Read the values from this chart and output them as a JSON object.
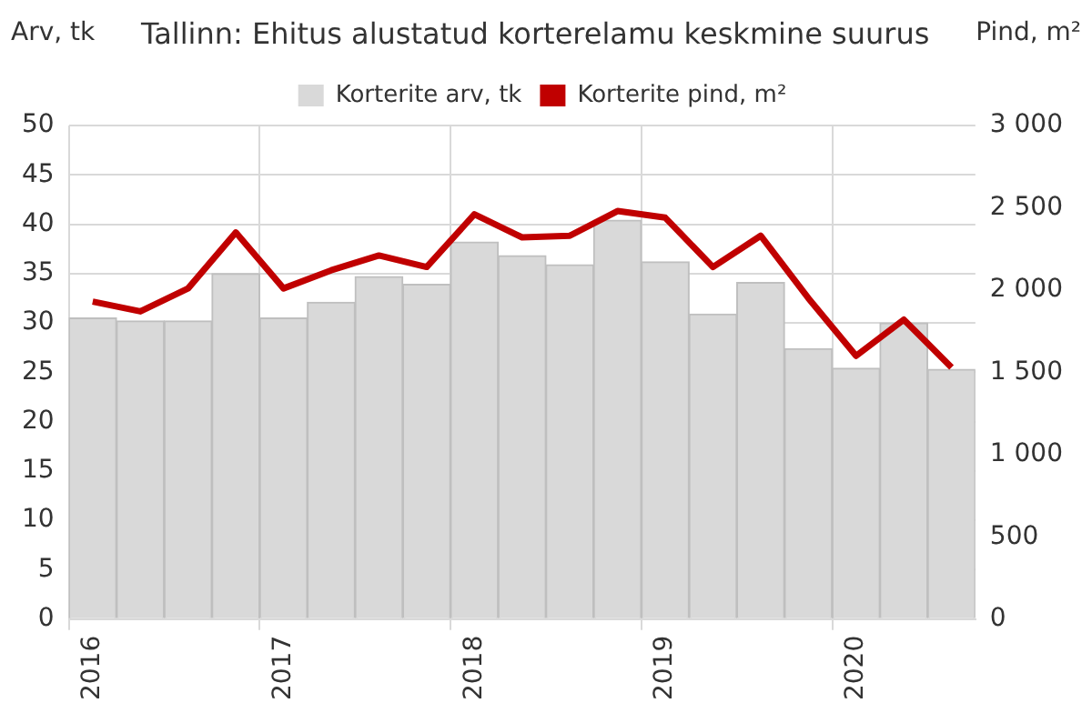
{
  "chart_data": {
    "type": "bar",
    "title": "Tallinn: Ehitus alustatud korterelamu keskmine suurus",
    "ylabel": "Arv, tk",
    "y2label": "Pind, m²",
    "categories": [
      "2016",
      null,
      null,
      null,
      "2017",
      null,
      null,
      null,
      "2018",
      null,
      null,
      null,
      "2019",
      null,
      null,
      null,
      "2020",
      null,
      null
    ],
    "series": [
      {
        "name": "Korterite arv, tk",
        "color": "#d9d9d9",
        "values": [
          30.5,
          30.2,
          30.2,
          35.0,
          30.5,
          32.1,
          34.7,
          33.9,
          38.2,
          36.8,
          35.9,
          40.4,
          36.2,
          30.9,
          34.1,
          27.4,
          25.4,
          30.0,
          25.3
        ]
      },
      {
        "name": "Korterite pind, m²",
        "type": "line",
        "axis": "y2",
        "color": "#c00000",
        "values": [
          1930,
          1870,
          2010,
          2350,
          2010,
          2120,
          2210,
          2140,
          2460,
          2320,
          2330,
          2480,
          2440,
          2140,
          2330,
          1950,
          1600,
          1820,
          1530
        ]
      }
    ],
    "ylim": [
      0,
      50
    ],
    "yticks": [
      0,
      5,
      10,
      15,
      20,
      25,
      30,
      35,
      40,
      45,
      50
    ],
    "y2lim": [
      0,
      3000
    ],
    "y2ticks": [
      0,
      500,
      {
        "value": 1000,
        "label": "1 000"
      },
      {
        "value": 1500,
        "label": "1 500"
      },
      {
        "value": 2000,
        "label": "2 000"
      },
      {
        "value": 2500,
        "label": "2 500"
      },
      {
        "value": 3000,
        "label": "3 000"
      }
    ],
    "grid": true,
    "legend": "top",
    "marker": "none",
    "line_style": "solid"
  }
}
